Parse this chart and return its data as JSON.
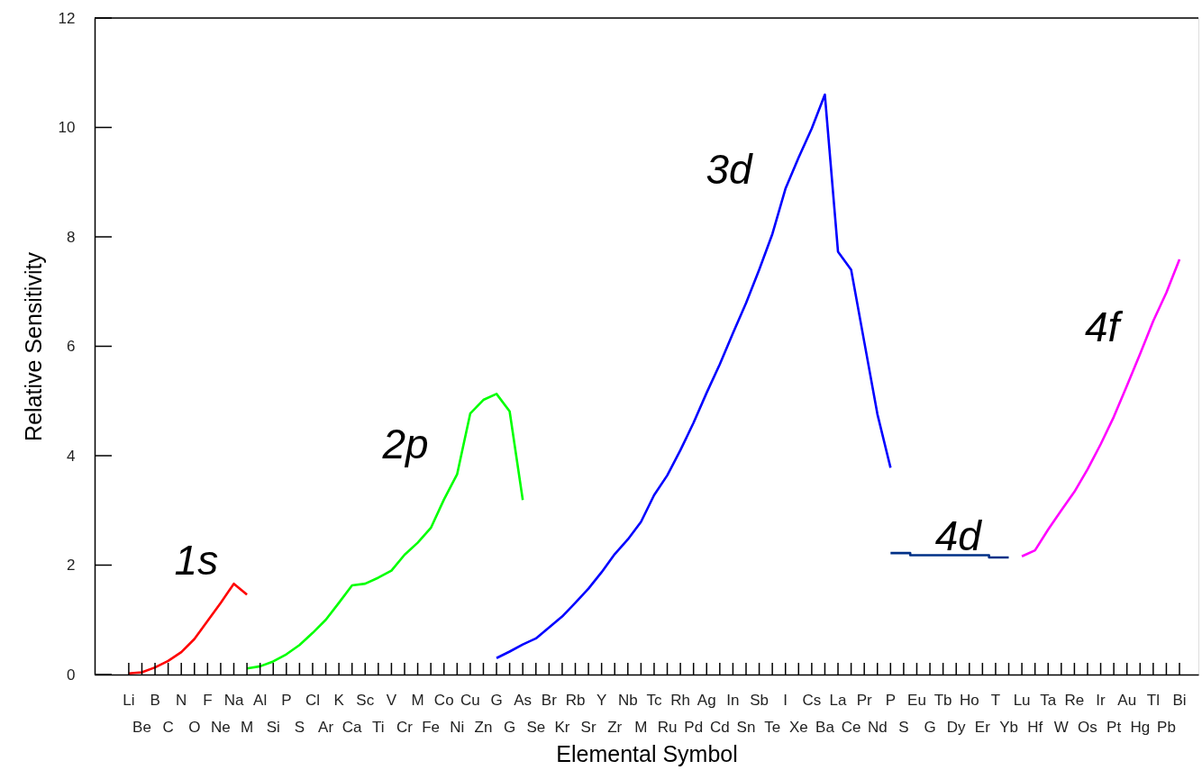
{
  "chart_data": {
    "type": "line",
    "xlabel": "Elemental Symbol",
    "ylabel": "Relative Sensitivity",
    "categories": [
      "Li",
      "Be",
      "B",
      "C",
      "N",
      "O",
      "F",
      "Ne",
      "Na",
      "M",
      "Al",
      "Si",
      "P",
      "S",
      "Cl",
      "Ar",
      "K",
      "Ca",
      "Sc",
      "Ti",
      "V",
      "Cr",
      "M",
      "Fe",
      "Co",
      "Ni",
      "Cu",
      "Zn",
      "G",
      "G",
      "As",
      "Se",
      "Br",
      "Kr",
      "Rb",
      "Sr",
      "Y",
      "Zr",
      "Nb",
      "M",
      "Tc",
      "Ru",
      "Rh",
      "Pd",
      "Ag",
      "Cd",
      "In",
      "Sn",
      "Sb",
      "Te",
      "I",
      "Xe",
      "Cs",
      "Ba",
      "La",
      "Ce",
      "Pr",
      "Nd",
      "P",
      "S",
      "Eu",
      "G",
      "Tb",
      "Dy",
      "Ho",
      "Er",
      "T",
      "Yb",
      "Lu",
      "Hf",
      "Ta",
      "W",
      "Re",
      "Os",
      "Ir",
      "Pt",
      "Au",
      "Hg",
      "Tl",
      "Pb",
      "Bi"
    ],
    "series": [
      {
        "name": "1s",
        "color": "#ff0000",
        "values": [
          0.02,
          0.04,
          0.13,
          0.25,
          0.41,
          0.65,
          0.98,
          1.31,
          1.66,
          1.46,
          null,
          null,
          null,
          null,
          null,
          null,
          null,
          null,
          null,
          null,
          null,
          null,
          null,
          null,
          null,
          null,
          null,
          null,
          null,
          null,
          null,
          null,
          null,
          null,
          null,
          null,
          null,
          null,
          null,
          null,
          null,
          null,
          null,
          null,
          null,
          null,
          null,
          null,
          null,
          null,
          null,
          null,
          null,
          null,
          null,
          null,
          null,
          null,
          null,
          null,
          null,
          null,
          null,
          null,
          null,
          null,
          null,
          null,
          null,
          null,
          null,
          null,
          null,
          null,
          null,
          null,
          null,
          null,
          null,
          null,
          null
        ]
      },
      {
        "name": "2p",
        "color": "#00ff00",
        "values": [
          null,
          null,
          null,
          null,
          null,
          null,
          null,
          null,
          null,
          0.11,
          0.15,
          0.24,
          0.37,
          0.54,
          0.76,
          1.0,
          1.31,
          1.63,
          1.66,
          1.77,
          1.9,
          2.19,
          2.41,
          2.68,
          3.2,
          3.66,
          4.77,
          5.02,
          5.13,
          4.81,
          3.19,
          null,
          null,
          null,
          null,
          null,
          null,
          null,
          null,
          null,
          null,
          null,
          null,
          null,
          null,
          null,
          null,
          null,
          null,
          null,
          null,
          null,
          null,
          null,
          null,
          null,
          null,
          null,
          null,
          null,
          null,
          null,
          null,
          null,
          null,
          null,
          null,
          null,
          null,
          null,
          null,
          null,
          null,
          null,
          null,
          null,
          null,
          null,
          null,
          null,
          null
        ]
      },
      {
        "name": "3d",
        "color": "#0000ff",
        "values": [
          null,
          null,
          null,
          null,
          null,
          null,
          null,
          null,
          null,
          null,
          null,
          null,
          null,
          null,
          null,
          null,
          null,
          null,
          null,
          null,
          null,
          null,
          null,
          null,
          null,
          null,
          null,
          null,
          0.3,
          0.42,
          0.55,
          0.66,
          0.86,
          1.06,
          1.31,
          1.57,
          1.87,
          2.2,
          2.47,
          2.79,
          3.28,
          3.64,
          4.1,
          4.6,
          5.15,
          5.67,
          6.24,
          6.79,
          7.4,
          8.05,
          8.88,
          9.45,
          9.98,
          10.6,
          7.73,
          7.4,
          6.08,
          4.76,
          3.78,
          null,
          null,
          null,
          null,
          null,
          null,
          null,
          null,
          null,
          null,
          null,
          null,
          null,
          null,
          null,
          null,
          null,
          null,
          null,
          null,
          null,
          null
        ]
      },
      {
        "name": "4d",
        "color": "#003087",
        "type": "step",
        "values": [
          null,
          null,
          null,
          null,
          null,
          null,
          null,
          null,
          null,
          null,
          null,
          null,
          null,
          null,
          null,
          null,
          null,
          null,
          null,
          null,
          null,
          null,
          null,
          null,
          null,
          null,
          null,
          null,
          null,
          null,
          null,
          null,
          null,
          null,
          null,
          null,
          null,
          null,
          null,
          null,
          null,
          null,
          null,
          null,
          null,
          null,
          null,
          null,
          null,
          null,
          null,
          null,
          null,
          null,
          null,
          null,
          null,
          null,
          2.22,
          2.22,
          2.18,
          2.18,
          2.18,
          2.18,
          2.18,
          2.18,
          2.14,
          2.14,
          null,
          null,
          null,
          null,
          null,
          null,
          null,
          null,
          null,
          null,
          null,
          null,
          null
        ]
      },
      {
        "name": "4f",
        "color": "#ff00ff",
        "values": [
          null,
          null,
          null,
          null,
          null,
          null,
          null,
          null,
          null,
          null,
          null,
          null,
          null,
          null,
          null,
          null,
          null,
          null,
          null,
          null,
          null,
          null,
          null,
          null,
          null,
          null,
          null,
          null,
          null,
          null,
          null,
          null,
          null,
          null,
          null,
          null,
          null,
          null,
          null,
          null,
          null,
          null,
          null,
          null,
          null,
          null,
          null,
          null,
          null,
          null,
          null,
          null,
          null,
          null,
          null,
          null,
          null,
          null,
          null,
          null,
          null,
          null,
          null,
          null,
          null,
          null,
          null,
          null,
          2.16,
          2.27,
          2.65,
          3.0,
          3.34,
          3.75,
          4.21,
          4.71,
          5.28,
          5.86,
          6.46,
          6.98,
          7.59
        ]
      }
    ],
    "ylim": [
      0,
      12
    ],
    "yticks": [
      0,
      2,
      4,
      6,
      8,
      10,
      12
    ],
    "grid": false,
    "marker": "none",
    "line_style": "solid"
  }
}
